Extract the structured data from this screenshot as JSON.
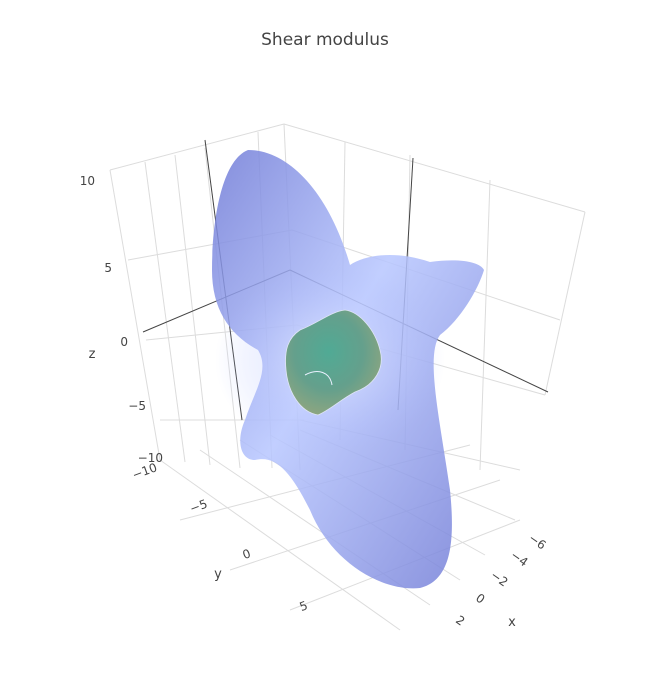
{
  "chart_data": {
    "type": "3d-surface",
    "title": "Shear modulus",
    "axes": {
      "x": {
        "label": "x",
        "ticks": [
          "−6",
          "−4",
          "−2",
          "0",
          "2"
        ]
      },
      "y": {
        "label": "y",
        "ticks": [
          "−10",
          "−5",
          "0",
          "5"
        ]
      },
      "z": {
        "label": "z",
        "ticks": [
          "10",
          "5",
          "0",
          "−5",
          "−10"
        ]
      }
    },
    "surfaces": [
      {
        "role": "outer",
        "colorscale": [
          "#7b86db",
          "#b9c8ff"
        ],
        "opacity": 0.85
      },
      {
        "role": "inner",
        "colorscale": [
          "#7aa66c",
          "#3d9e8a"
        ],
        "opacity": 0.95
      }
    ],
    "grid": true,
    "legend": "none"
  }
}
